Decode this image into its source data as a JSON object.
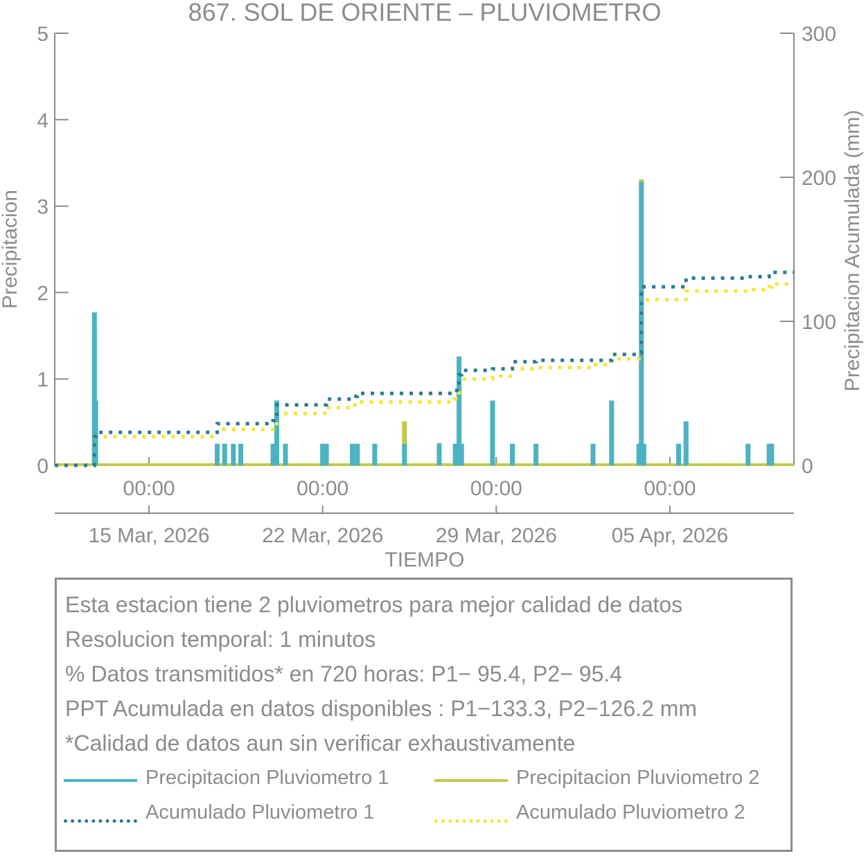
{
  "chart_data": {
    "type": "bar+line",
    "title": "867. SOL DE ORIENTE – PLUVIOMETRO",
    "xlabel": "TIEMPO",
    "ylabel_left": "Precipitacion",
    "ylabel_right": "Precipitacion Acumulada (mm)",
    "ylim_left": [
      0,
      5
    ],
    "ylim_right": [
      0,
      300
    ],
    "yticks_left": [
      "0",
      "1",
      "2",
      "3",
      "4",
      "5"
    ],
    "yticks_right": [
      "0",
      "100",
      "200",
      "300"
    ],
    "x_range_days": [
      -3.8,
      26.0
    ],
    "x_ticks_time": [
      {
        "day": 0,
        "label": "00:00"
      },
      {
        "day": 7,
        "label": "00:00"
      },
      {
        "day": 14,
        "label": "00:00"
      },
      {
        "day": 21,
        "label": "00:00"
      }
    ],
    "x_ticks_date": [
      {
        "day": 0,
        "label": "15 Mar, 2026"
      },
      {
        "day": 7,
        "label": "22 Mar, 2026"
      },
      {
        "day": 14,
        "label": "29 Mar, 2026"
      },
      {
        "day": 21,
        "label": "05 Apr, 2026"
      }
    ],
    "colors": {
      "p1": "#4ab3c4",
      "p2": "#c2c94c",
      "acc1": "#2a7a94",
      "acc2": "#f4e635",
      "axis": "#8c8c8c",
      "text": "#8c8c8c"
    },
    "series": [
      {
        "name": "Precipitacion Pluviometro 1",
        "kind": "bar",
        "axis": "left",
        "points": [
          [
            -2.2,
            1.77
          ],
          [
            -2.15,
            0.75
          ],
          [
            2.75,
            0.25
          ],
          [
            3.05,
            0.25
          ],
          [
            3.4,
            0.25
          ],
          [
            3.7,
            0.25
          ],
          [
            5.0,
            0.25
          ],
          [
            5.15,
            0.75
          ],
          [
            5.5,
            0.25
          ],
          [
            7.0,
            0.25
          ],
          [
            7.15,
            0.25
          ],
          [
            8.2,
            0.25
          ],
          [
            8.4,
            0.25
          ],
          [
            9.1,
            0.25
          ],
          [
            10.3,
            0.25
          ],
          [
            11.7,
            0.25
          ],
          [
            12.35,
            0.25
          ],
          [
            12.5,
            1.26
          ],
          [
            12.6,
            0.25
          ],
          [
            13.85,
            0.75
          ],
          [
            14.65,
            0.25
          ],
          [
            15.6,
            0.25
          ],
          [
            17.9,
            0.25
          ],
          [
            18.65,
            0.75
          ],
          [
            19.75,
            0.25
          ],
          [
            19.85,
            3.28
          ],
          [
            19.95,
            0.25
          ],
          [
            21.35,
            0.25
          ],
          [
            21.65,
            0.51
          ],
          [
            24.15,
            0.25
          ],
          [
            25.0,
            0.25
          ],
          [
            25.1,
            0.25
          ]
        ]
      },
      {
        "name": "Precipitacion Pluviometro 2",
        "kind": "bar",
        "axis": "left",
        "points": [
          [
            -2.2,
            1.52
          ],
          [
            -2.15,
            0.75
          ],
          [
            2.75,
            0.25
          ],
          [
            3.05,
            0.25
          ],
          [
            3.7,
            0.25
          ],
          [
            5.0,
            0.25
          ],
          [
            5.15,
            0.75
          ],
          [
            5.5,
            0.25
          ],
          [
            7.0,
            0.25
          ],
          [
            7.15,
            0.25
          ],
          [
            8.2,
            0.25
          ],
          [
            8.4,
            0.25
          ],
          [
            9.1,
            0.25
          ],
          [
            10.3,
            0.51
          ],
          [
            11.7,
            0.26
          ],
          [
            12.35,
            0.25
          ],
          [
            12.5,
            1.0
          ],
          [
            12.6,
            0.25
          ],
          [
            13.85,
            0.75
          ],
          [
            14.65,
            0.25
          ],
          [
            15.6,
            0.25
          ],
          [
            17.9,
            0.25
          ],
          [
            18.65,
            0.75
          ],
          [
            19.75,
            0.25
          ],
          [
            19.85,
            3.31
          ],
          [
            21.35,
            0.25
          ],
          [
            21.65,
            0.49
          ],
          [
            24.15,
            0.25
          ],
          [
            25.0,
            0.25
          ],
          [
            25.1,
            0.25
          ]
        ]
      },
      {
        "name": "Acumulado Pluviometro 1",
        "kind": "line",
        "axis": "right",
        "points": [
          [
            -3.8,
            0
          ],
          [
            -2.25,
            0
          ],
          [
            -2.2,
            20
          ],
          [
            -2.15,
            23
          ],
          [
            2.7,
            23
          ],
          [
            2.75,
            29
          ],
          [
            5.0,
            31
          ],
          [
            5.15,
            42
          ],
          [
            7.0,
            42
          ],
          [
            7.15,
            46
          ],
          [
            8.2,
            48
          ],
          [
            8.4,
            50
          ],
          [
            12.3,
            52
          ],
          [
            12.5,
            63
          ],
          [
            12.6,
            66
          ],
          [
            13.85,
            67
          ],
          [
            14.65,
            72
          ],
          [
            15.6,
            73
          ],
          [
            17.9,
            73
          ],
          [
            18.65,
            77
          ],
          [
            19.75,
            78
          ],
          [
            19.85,
            121
          ],
          [
            19.95,
            124
          ],
          [
            21.35,
            124
          ],
          [
            21.65,
            130
          ],
          [
            24.15,
            131
          ],
          [
            25.0,
            133
          ],
          [
            25.1,
            134
          ],
          [
            26.0,
            134
          ]
        ]
      },
      {
        "name": "Acumulado Pluviometro 2",
        "kind": "line",
        "axis": "right",
        "points": [
          [
            -3.8,
            0
          ],
          [
            -2.25,
            0
          ],
          [
            -2.2,
            17
          ],
          [
            -2.15,
            20
          ],
          [
            2.7,
            20
          ],
          [
            2.75,
            23
          ],
          [
            3.0,
            25
          ],
          [
            5.0,
            26
          ],
          [
            5.15,
            36
          ],
          [
            7.0,
            36
          ],
          [
            7.15,
            40
          ],
          [
            8.2,
            42
          ],
          [
            8.4,
            44
          ],
          [
            12.3,
            46
          ],
          [
            12.5,
            57
          ],
          [
            12.6,
            60
          ],
          [
            13.85,
            62
          ],
          [
            14.65,
            67
          ],
          [
            15.6,
            68
          ],
          [
            17.9,
            70
          ],
          [
            18.65,
            74
          ],
          [
            19.75,
            75
          ],
          [
            19.85,
            115
          ],
          [
            21.35,
            115
          ],
          [
            21.65,
            121
          ],
          [
            24.15,
            122
          ],
          [
            25.0,
            124
          ],
          [
            25.1,
            126
          ],
          [
            26.0,
            126
          ]
        ]
      }
    ]
  },
  "info": {
    "line1": "Esta estacion tiene 2 pluviometros para mejor calidad de datos",
    "line2": "Resolucion temporal: 1 minutos",
    "line3": "% Datos transmitidos* en 720 horas: P1− 95.4, P2− 95.4",
    "line4": "PPT Acumulada en datos disponibles : P1−133.3, P2−126.2 mm",
    "line5": "*Calidad de datos aun sin verificar exhaustivamente"
  },
  "legend": {
    "p1": "Precipitacion Pluviometro 1",
    "p2": "Precipitacion Pluviometro 2",
    "acc1": "Acumulado Pluviometro 1",
    "acc2": "Acumulado Pluviometro 2"
  }
}
